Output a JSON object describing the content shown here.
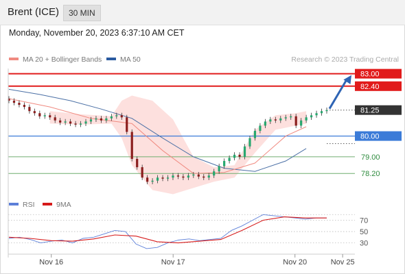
{
  "header": {
    "instrument": "Brent (ICE)",
    "timeframe": "30 MIN"
  },
  "datetime": "Monday, November 20, 2023 6:37:10 AM CET",
  "colors": {
    "accent_red": "#e11b1b",
    "accent_blue": "#3b7bd8",
    "support_green": "#6fae6f",
    "last_price_bg": "#333333",
    "candle_up": "#27a86f",
    "candle_down": "#8b1d1d",
    "bollinger_fill": "#fde0de",
    "ma20": "#f08a80",
    "ma50": "#4a6fa5",
    "rsi": "#5c7fd8",
    "rsi_ma": "#d61a1a",
    "arrow": "#2e64b4"
  },
  "chart_data": [
    {
      "type": "candlestick",
      "title": "Brent (ICE) 30 MIN",
      "legend": [
        {
          "label": "MA 20 + Bollinger Bands",
          "color": "#f08a80"
        },
        {
          "label": "MA 50",
          "color": "#2a5aa0"
        }
      ],
      "legend_placement": "top-left",
      "watermark": "Research © 2023 Trading Central",
      "x_ticks": [
        {
          "label": "Nov 16",
          "x": 8
        },
        {
          "label": "Nov 17",
          "x": 31
        },
        {
          "label": "Nov 20",
          "x": 54
        },
        {
          "label": "Nov 25",
          "x": 63
        }
      ],
      "ylim": [
        77.25,
        83.35
      ],
      "price_levels": [
        {
          "value": 83.0,
          "label": "83.00",
          "kind": "resistance"
        },
        {
          "value": 82.4,
          "label": "82.40",
          "kind": "resistance"
        },
        {
          "value": 81.25,
          "label": "81.25",
          "kind": "last"
        },
        {
          "value": 80.0,
          "label": "80.00",
          "kind": "pivot"
        },
        {
          "value": 79.0,
          "label": "79.00",
          "kind": "support"
        },
        {
          "value": 78.2,
          "label": "78.20",
          "kind": "support"
        }
      ],
      "target_arrow": {
        "from": 81.25,
        "to": 83.0
      },
      "close_series": [
        81.7,
        81.6,
        81.5,
        81.4,
        81.2,
        81.1,
        80.95,
        81.0,
        80.9,
        80.75,
        80.65,
        80.7,
        80.6,
        80.55,
        80.6,
        80.7,
        80.8,
        80.85,
        80.75,
        80.85,
        80.95,
        81.0,
        80.9,
        80.2,
        78.9,
        78.5,
        78.0,
        77.8,
        77.85,
        78.0,
        77.95,
        78.0,
        78.1,
        78.05,
        78.0,
        78.1,
        78.15,
        78.05,
        78.0,
        78.1,
        78.3,
        78.55,
        78.8,
        78.95,
        79.1,
        79.0,
        79.5,
        79.9,
        80.25,
        80.5,
        80.7,
        80.8,
        80.75,
        80.85,
        80.9,
        80.95,
        80.5,
        80.75,
        80.9,
        81.0,
        81.1,
        81.2,
        81.25
      ],
      "series": [
        {
          "name": "MA 20",
          "x": [
            0,
            8,
            16,
            24,
            30,
            36,
            42,
            48,
            54,
            58
          ],
          "values": [
            81.8,
            81.4,
            80.85,
            80.6,
            79.3,
            78.2,
            78.25,
            78.7,
            80.0,
            80.45
          ]
        },
        {
          "name": "MA 50",
          "x": [
            0,
            6,
            12,
            18,
            24,
            30,
            36,
            42,
            48,
            54,
            58
          ],
          "values": [
            82.25,
            82.0,
            81.7,
            81.3,
            80.85,
            79.9,
            79.0,
            78.45,
            78.3,
            78.8,
            79.4
          ]
        },
        {
          "name": "Bollinger upper",
          "x": [
            8,
            14,
            20,
            22,
            24,
            28,
            32,
            36,
            40,
            44,
            48,
            52,
            56,
            58
          ],
          "values": [
            81.2,
            81.05,
            80.95,
            81.7,
            81.95,
            81.7,
            80.8,
            79.0,
            78.5,
            78.6,
            80.3,
            81.0,
            81.1,
            81.2
          ]
        },
        {
          "name": "Bollinger lower",
          "x": [
            8,
            14,
            20,
            22,
            24,
            28,
            32,
            36,
            40,
            44,
            48,
            52,
            56,
            58
          ],
          "values": [
            80.6,
            80.55,
            80.6,
            79.9,
            78.6,
            77.4,
            77.2,
            77.5,
            77.8,
            78.0,
            79.2,
            80.3,
            80.5,
            80.6
          ]
        }
      ]
    },
    {
      "type": "line",
      "title": "RSI",
      "legend": [
        {
          "label": "RSI",
          "color": "#5c7fd8"
        },
        {
          "label": "9MA",
          "color": "#d61a1a"
        }
      ],
      "ylim": [
        15,
        90
      ],
      "y_ticks": [
        70,
        50,
        30
      ],
      "series": [
        {
          "name": "RSI",
          "x": [
            0,
            2,
            4,
            6,
            8,
            10,
            12,
            14,
            16,
            18,
            20,
            22,
            24,
            26,
            28,
            30,
            32,
            34,
            36,
            38,
            40,
            42,
            44,
            46,
            48,
            50,
            52,
            54,
            56,
            58,
            60
          ],
          "values": [
            38,
            40,
            36,
            30,
            33,
            35,
            30,
            38,
            40,
            46,
            52,
            50,
            28,
            20,
            22,
            30,
            35,
            37,
            34,
            36,
            38,
            52,
            60,
            70,
            80,
            78,
            76,
            74,
            72,
            74,
            74
          ]
        },
        {
          "name": "9MA",
          "x": [
            0,
            4,
            8,
            12,
            16,
            20,
            24,
            28,
            32,
            36,
            40,
            44,
            48,
            52,
            56,
            60
          ],
          "values": [
            40,
            38,
            34,
            33,
            37,
            44,
            42,
            32,
            30,
            33,
            36,
            52,
            70,
            76,
            74,
            74
          ]
        }
      ]
    }
  ]
}
